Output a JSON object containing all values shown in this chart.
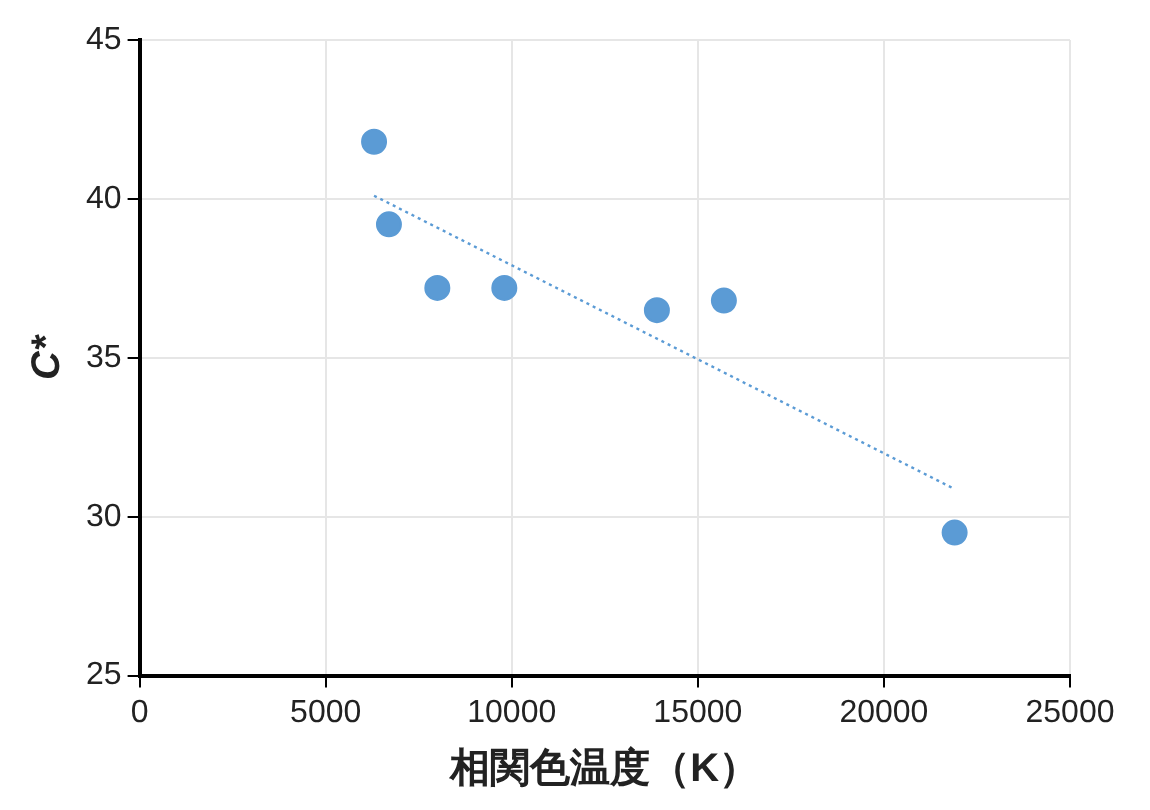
{
  "chart_data": {
    "type": "scatter",
    "xlabel": "相関色温度（K）",
    "ylabel": "C*",
    "xlim": [
      0,
      25000
    ],
    "xticks": [
      0,
      5000,
      10000,
      15000,
      20000,
      25000
    ],
    "ylim": [
      25,
      45
    ],
    "yticks": [
      25,
      30,
      35,
      40,
      45
    ],
    "grid": true,
    "legend": false,
    "marker": "circle",
    "series": [
      {
        "color": "#5b9bd5",
        "x": [
          6300,
          6700,
          8000,
          9800,
          13900,
          15700,
          21900
        ],
        "values": [
          41.8,
          39.2,
          37.2,
          37.2,
          36.5,
          36.8,
          29.5
        ]
      },
      {
        "type": "line",
        "color": "#5b9bd5",
        "line_style": "dotted",
        "marker": "none",
        "x": [
          6300,
          21850
        ],
        "values": [
          40.1,
          30.9
        ]
      }
    ]
  }
}
